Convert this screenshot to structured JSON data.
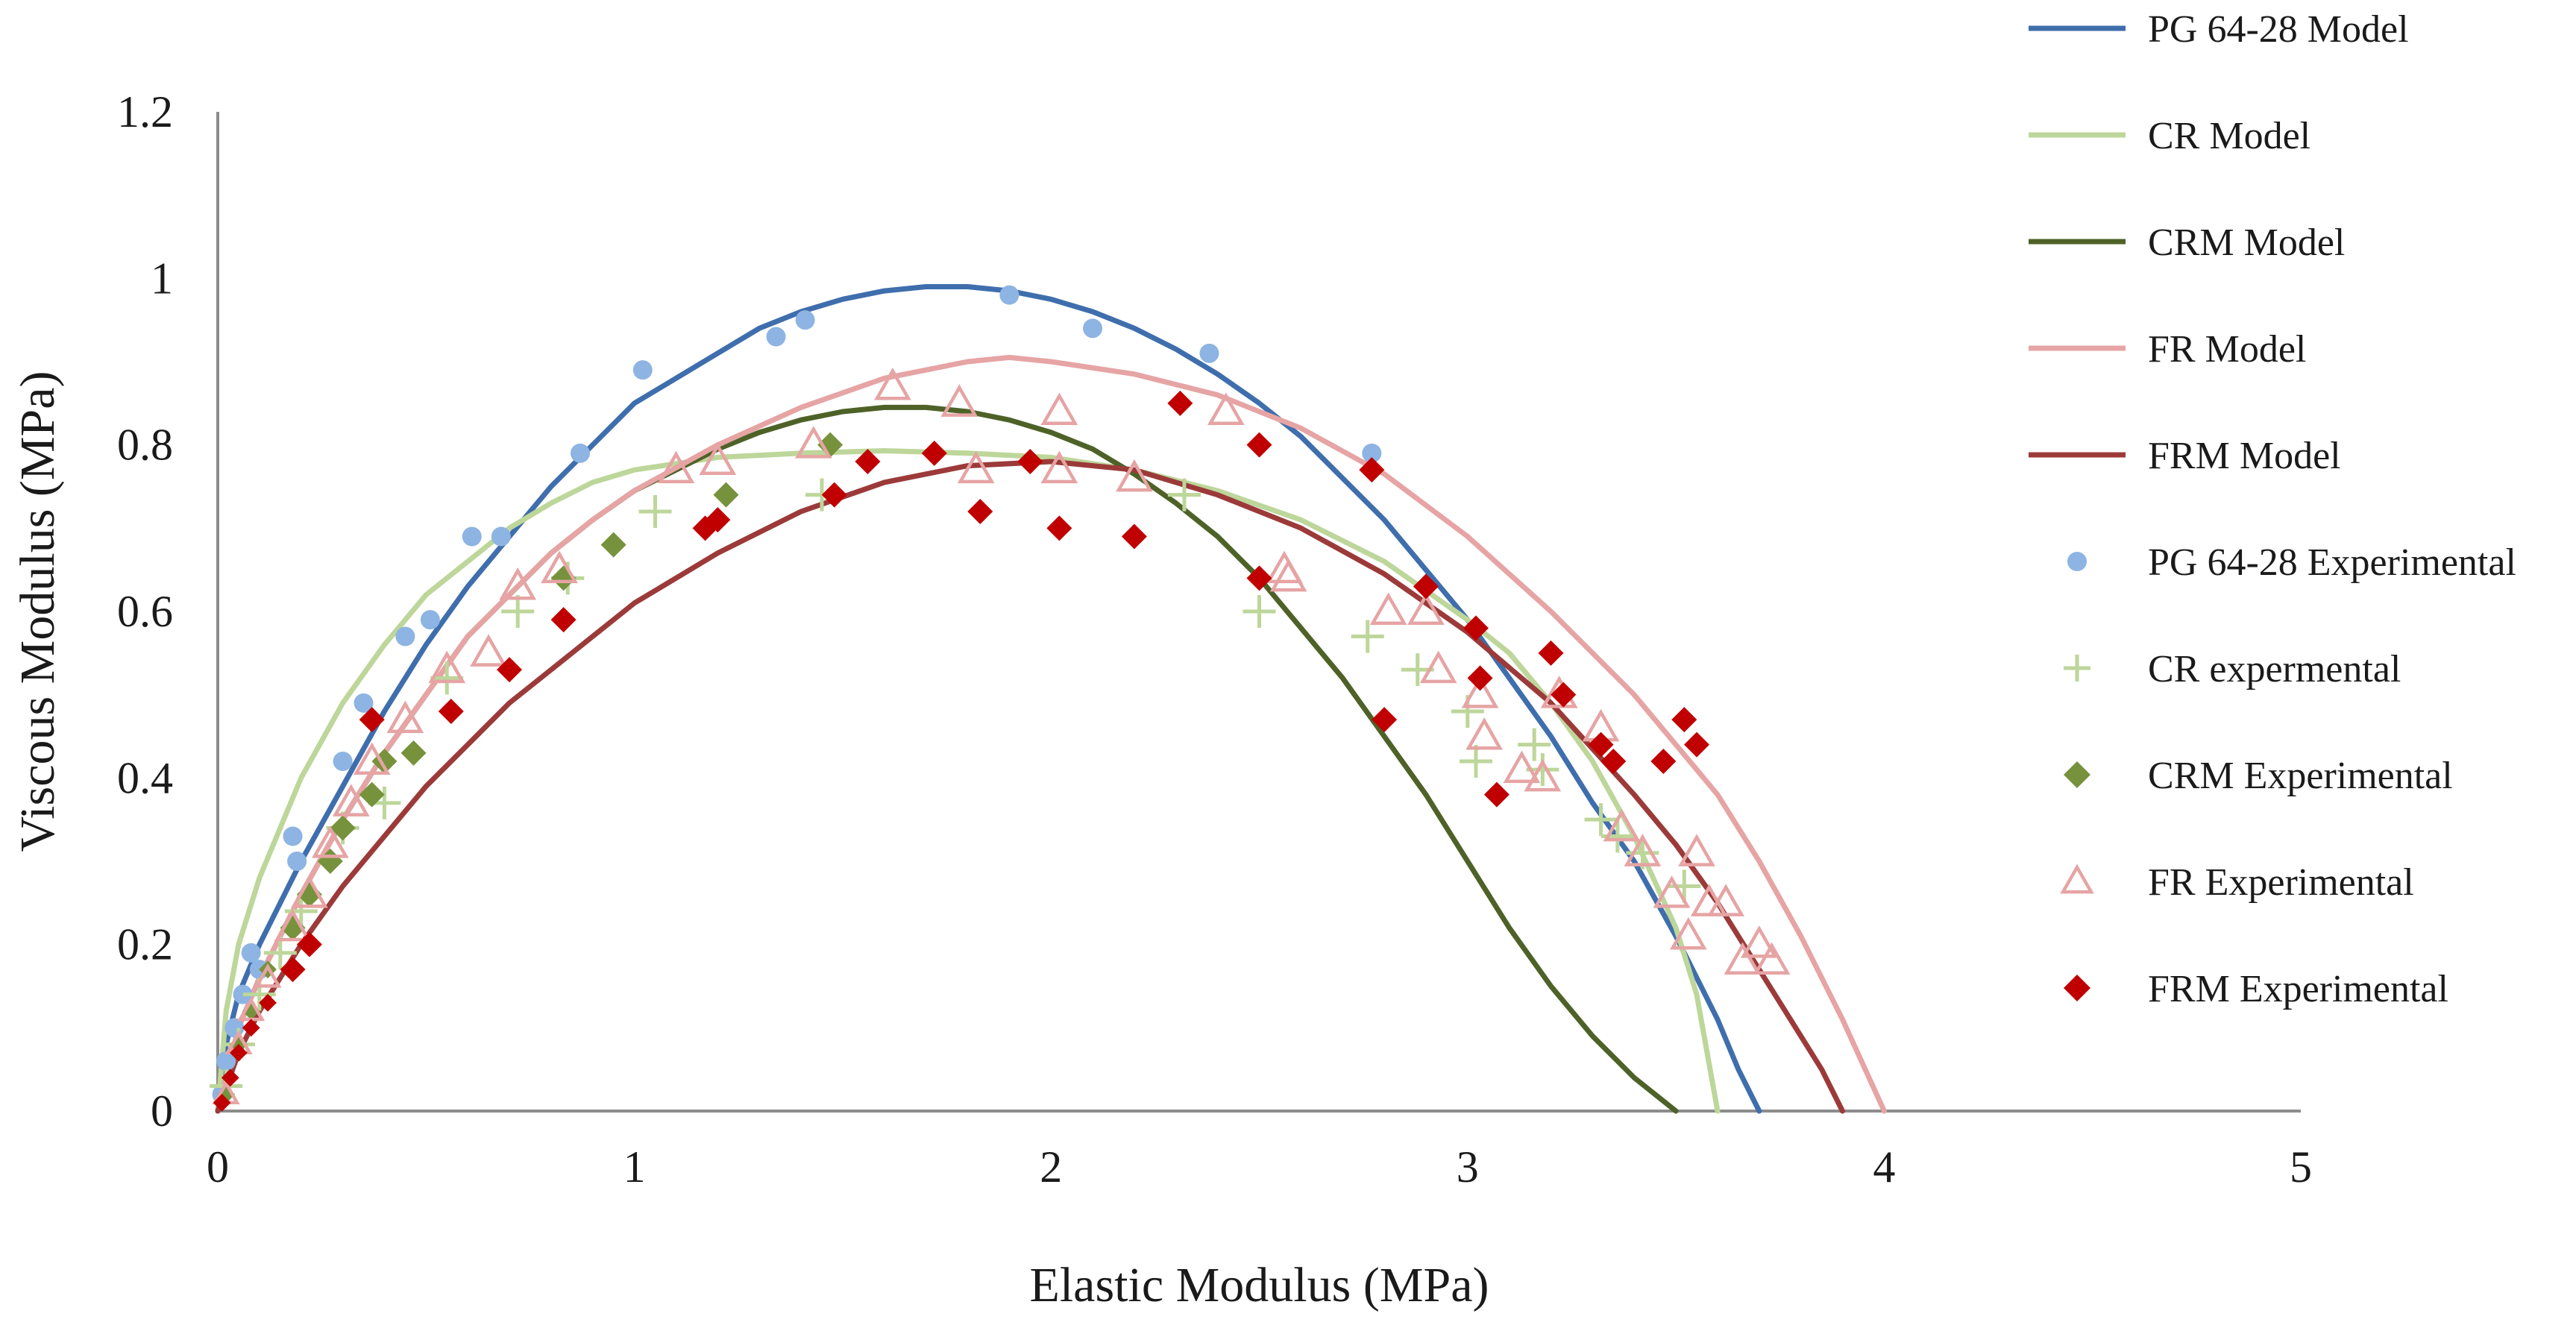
{
  "chart_data": {
    "type": "scatter",
    "xlabel": "Elastic Modulus (MPa)",
    "ylabel": "Viscous Modulus (MPa)",
    "xlim": [
      0,
      5
    ],
    "ylim": [
      0,
      1.2
    ],
    "xticks": [
      0,
      1,
      2,
      3,
      4,
      5
    ],
    "yticks": [
      0,
      0.2,
      0.4,
      0.6,
      0.8,
      1,
      1.2
    ],
    "xtick_labels": [
      "0",
      "1",
      "2",
      "3",
      "4",
      "5"
    ],
    "ytick_labels": [
      "0",
      "0.2",
      "0.4",
      "0.6",
      "0.8",
      "1",
      "1.2"
    ],
    "legend_position": "right",
    "series": [
      {
        "name": "PG 64-28 Model",
        "kind": "line",
        "color": "#3F6EAD",
        "x": [
          0,
          0.02,
          0.05,
          0.1,
          0.2,
          0.3,
          0.4,
          0.5,
          0.6,
          0.7,
          0.8,
          0.9,
          1.0,
          1.1,
          1.2,
          1.3,
          1.4,
          1.5,
          1.6,
          1.7,
          1.8,
          1.9,
          2.0,
          2.1,
          2.2,
          2.3,
          2.4,
          2.5,
          2.6,
          2.7,
          2.8,
          2.9,
          3.0,
          3.1,
          3.2,
          3.3,
          3.4,
          3.5,
          3.6,
          3.65,
          3.7
        ],
        "y": [
          0,
          0.08,
          0.14,
          0.2,
          0.3,
          0.39,
          0.48,
          0.56,
          0.63,
          0.69,
          0.75,
          0.8,
          0.85,
          0.88,
          0.91,
          0.94,
          0.96,
          0.975,
          0.985,
          0.99,
          0.99,
          0.985,
          0.975,
          0.96,
          0.94,
          0.915,
          0.885,
          0.85,
          0.81,
          0.76,
          0.71,
          0.65,
          0.59,
          0.52,
          0.45,
          0.37,
          0.3,
          0.21,
          0.11,
          0.05,
          0
        ]
      },
      {
        "name": "CR Model",
        "kind": "line",
        "color": "#BDD69A",
        "x": [
          0,
          0.02,
          0.05,
          0.1,
          0.2,
          0.3,
          0.4,
          0.5,
          0.6,
          0.7,
          0.8,
          0.9,
          1.0,
          1.2,
          1.4,
          1.6,
          1.8,
          2.0,
          2.2,
          2.4,
          2.6,
          2.8,
          3.0,
          3.1,
          3.2,
          3.3,
          3.4,
          3.5,
          3.55,
          3.6
        ],
        "y": [
          0,
          0.12,
          0.2,
          0.28,
          0.4,
          0.49,
          0.56,
          0.62,
          0.66,
          0.7,
          0.73,
          0.755,
          0.77,
          0.785,
          0.79,
          0.793,
          0.79,
          0.785,
          0.77,
          0.745,
          0.71,
          0.66,
          0.59,
          0.55,
          0.49,
          0.42,
          0.33,
          0.22,
          0.14,
          0
        ]
      },
      {
        "name": "CRM Model",
        "kind": "line",
        "color": "#4E6228",
        "x": [
          0,
          0.05,
          0.1,
          0.2,
          0.3,
          0.4,
          0.5,
          0.6,
          0.7,
          0.8,
          0.9,
          1.0,
          1.1,
          1.2,
          1.3,
          1.4,
          1.5,
          1.6,
          1.7,
          1.8,
          1.9,
          2.0,
          2.1,
          2.2,
          2.3,
          2.4,
          2.5,
          2.6,
          2.7,
          2.8,
          2.9,
          3.0,
          3.1,
          3.2,
          3.3,
          3.4,
          3.5
        ],
        "y": [
          0,
          0.1,
          0.16,
          0.26,
          0.35,
          0.43,
          0.5,
          0.57,
          0.62,
          0.67,
          0.71,
          0.745,
          0.77,
          0.795,
          0.815,
          0.83,
          0.84,
          0.845,
          0.845,
          0.84,
          0.83,
          0.815,
          0.795,
          0.765,
          0.73,
          0.69,
          0.64,
          0.58,
          0.52,
          0.45,
          0.38,
          0.3,
          0.22,
          0.15,
          0.09,
          0.04,
          0
        ]
      },
      {
        "name": "FR Model",
        "kind": "line",
        "color": "#E6A4A4",
        "x": [
          0,
          0.05,
          0.1,
          0.2,
          0.3,
          0.4,
          0.5,
          0.6,
          0.7,
          0.8,
          0.9,
          1.0,
          1.2,
          1.4,
          1.6,
          1.8,
          1.9,
          2.0,
          2.2,
          2.4,
          2.6,
          2.8,
          3.0,
          3.2,
          3.4,
          3.6,
          3.7,
          3.8,
          3.9,
          4.0
        ],
        "y": [
          0,
          0.1,
          0.16,
          0.26,
          0.35,
          0.43,
          0.5,
          0.57,
          0.62,
          0.67,
          0.71,
          0.745,
          0.8,
          0.845,
          0.88,
          0.9,
          0.905,
          0.9,
          0.885,
          0.86,
          0.82,
          0.765,
          0.69,
          0.6,
          0.5,
          0.38,
          0.3,
          0.21,
          0.11,
          0
        ]
      },
      {
        "name": "FRM Model",
        "kind": "line",
        "color": "#9C3A3A",
        "x": [
          0,
          0.05,
          0.1,
          0.2,
          0.3,
          0.4,
          0.5,
          0.6,
          0.7,
          0.8,
          0.9,
          1.0,
          1.2,
          1.4,
          1.6,
          1.8,
          2.0,
          2.2,
          2.4,
          2.6,
          2.8,
          3.0,
          3.2,
          3.4,
          3.5,
          3.6,
          3.7,
          3.8,
          3.85,
          3.9
        ],
        "y": [
          0,
          0.07,
          0.12,
          0.2,
          0.27,
          0.33,
          0.39,
          0.44,
          0.49,
          0.53,
          0.57,
          0.61,
          0.67,
          0.72,
          0.755,
          0.775,
          0.78,
          0.77,
          0.74,
          0.7,
          0.645,
          0.575,
          0.49,
          0.38,
          0.32,
          0.25,
          0.17,
          0.09,
          0.05,
          0
        ]
      },
      {
        "name": "PG 64-28 Experimental",
        "kind": "marker",
        "marker": "circle",
        "color": "#8DB4E2",
        "x": [
          0.01,
          0.02,
          0.04,
          0.06,
          0.08,
          0.1,
          0.18,
          0.19,
          0.3,
          0.35,
          0.45,
          0.51,
          0.61,
          0.68,
          0.87,
          1.02,
          1.34,
          1.41,
          1.9,
          2.1,
          2.38,
          2.77
        ],
        "y": [
          0.02,
          0.06,
          0.1,
          0.14,
          0.19,
          0.17,
          0.33,
          0.3,
          0.42,
          0.49,
          0.57,
          0.59,
          0.69,
          0.69,
          0.79,
          0.89,
          0.93,
          0.95,
          0.98,
          0.94,
          0.91,
          0.79
        ]
      },
      {
        "name": "CR expermental",
        "kind": "marker",
        "marker": "plus",
        "color": "#BDD69A",
        "x": [
          0.02,
          0.05,
          0.1,
          0.15,
          0.2,
          0.3,
          0.4,
          0.55,
          0.72,
          0.84,
          1.05,
          1.45,
          2.32,
          2.5,
          2.76,
          2.88,
          3.0,
          3.02,
          3.16,
          3.18,
          3.32,
          3.36,
          3.42,
          3.52
        ],
        "y": [
          0.03,
          0.08,
          0.14,
          0.19,
          0.24,
          0.34,
          0.37,
          0.52,
          0.6,
          0.64,
          0.72,
          0.74,
          0.74,
          0.6,
          0.57,
          0.53,
          0.48,
          0.42,
          0.44,
          0.41,
          0.35,
          0.33,
          0.31,
          0.27
        ]
      },
      {
        "name": "CRM Experimental",
        "kind": "marker",
        "marker": "diamond",
        "color": "#76923C",
        "x": [
          0.02,
          0.05,
          0.08,
          0.12,
          0.18,
          0.22,
          0.27,
          0.3,
          0.37,
          0.4,
          0.47,
          0.83,
          0.95,
          1.22,
          1.47
        ],
        "y": [
          0.02,
          0.08,
          0.12,
          0.17,
          0.22,
          0.26,
          0.3,
          0.34,
          0.38,
          0.42,
          0.43,
          0.64,
          0.68,
          0.74,
          0.8
        ],
        "sizes": "decreasing"
      },
      {
        "name": "FR Experimental",
        "kind": "marker",
        "marker": "triangle",
        "color": "#E6A4A4",
        "x": [
          0.02,
          0.05,
          0.08,
          0.12,
          0.18,
          0.22,
          0.27,
          0.32,
          0.37,
          0.45,
          0.55,
          0.65,
          0.72,
          0.82,
          1.1,
          1.2,
          1.43,
          1.62,
          1.78,
          1.82,
          2.02,
          2.02,
          2.2,
          2.42,
          2.56,
          2.57,
          2.81,
          2.9,
          2.93,
          3.03,
          3.04,
          3.13,
          3.18,
          3.22,
          3.32,
          3.37,
          3.42,
          3.49,
          3.53,
          3.55,
          3.58,
          3.62,
          3.66,
          3.7,
          3.73
        ],
        "y": [
          0.02,
          0.08,
          0.12,
          0.16,
          0.22,
          0.26,
          0.32,
          0.37,
          0.42,
          0.47,
          0.53,
          0.55,
          0.63,
          0.65,
          0.77,
          0.78,
          0.8,
          0.87,
          0.85,
          0.77,
          0.84,
          0.77,
          0.76,
          0.84,
          0.65,
          0.64,
          0.6,
          0.6,
          0.53,
          0.5,
          0.45,
          0.41,
          0.4,
          0.5,
          0.46,
          0.34,
          0.31,
          0.26,
          0.21,
          0.31,
          0.25,
          0.25,
          0.18,
          0.2,
          0.18
        ],
        "sizes": "decreasing"
      },
      {
        "name": "FRM Experimental",
        "kind": "marker",
        "marker": "diamond",
        "color": "#C00000",
        "x": [
          0.01,
          0.03,
          0.05,
          0.08,
          0.12,
          0.18,
          0.22,
          0.37,
          0.56,
          0.7,
          0.83,
          1.17,
          1.2,
          1.48,
          1.56,
          1.72,
          1.83,
          1.95,
          2.02,
          2.2,
          2.31,
          2.5,
          2.5,
          2.77,
          2.8,
          2.9,
          3.02,
          3.03,
          3.07,
          3.2,
          3.23,
          3.32,
          3.35,
          3.47,
          3.52,
          3.55
        ],
        "y": [
          0.01,
          0.04,
          0.07,
          0.1,
          0.13,
          0.17,
          0.2,
          0.47,
          0.48,
          0.53,
          0.59,
          0.7,
          0.71,
          0.74,
          0.78,
          0.79,
          0.72,
          0.78,
          0.7,
          0.69,
          0.85,
          0.8,
          0.64,
          0.77,
          0.47,
          0.63,
          0.58,
          0.52,
          0.38,
          0.55,
          0.5,
          0.44,
          0.42,
          0.42,
          0.47,
          0.44
        ],
        "sizes": "decreasing"
      }
    ]
  }
}
